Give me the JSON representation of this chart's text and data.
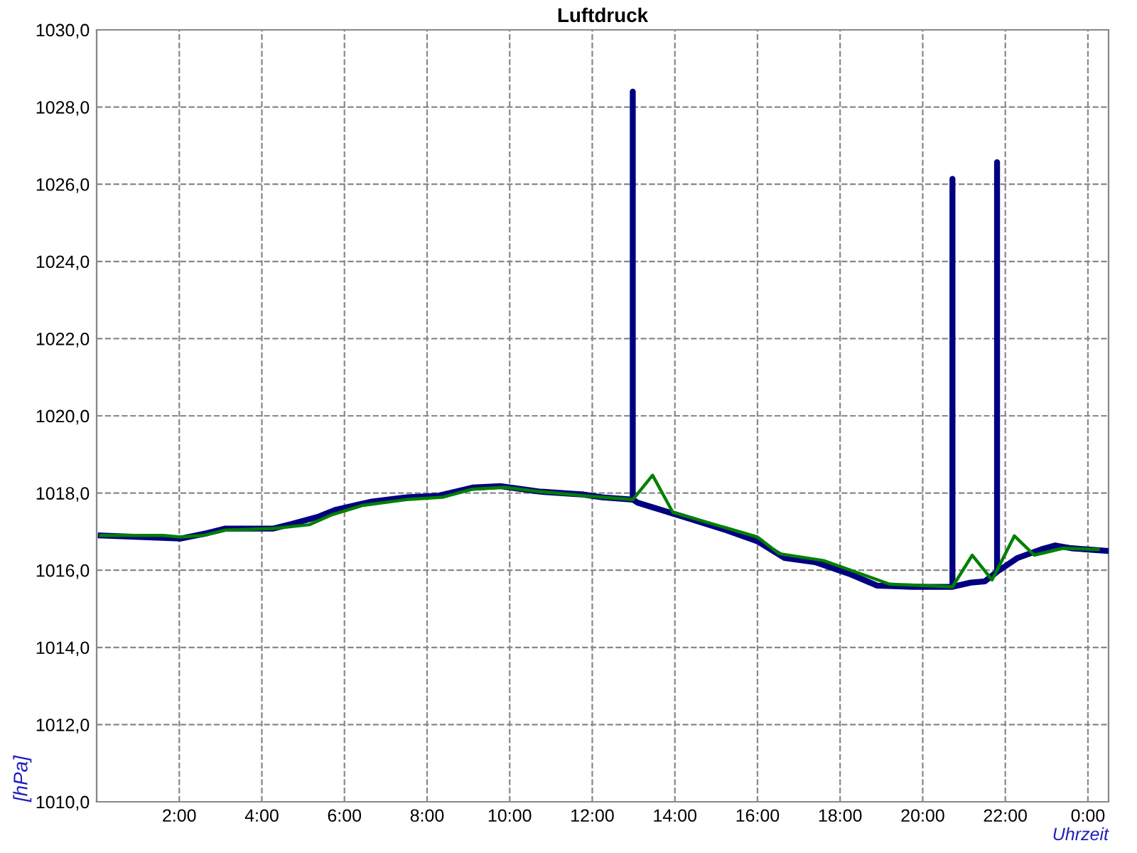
{
  "chart_data": {
    "type": "line",
    "title": "Luftdruck",
    "xlabel": "Uhrzeit",
    "ylabel": "[hPa]",
    "xlim": [
      0,
      24.5
    ],
    "xticks": [
      {
        "value": 0,
        "label": null
      },
      {
        "value": 2,
        "label": "2:00"
      },
      {
        "value": 4,
        "label": "4:00"
      },
      {
        "value": 6,
        "label": "6:00"
      },
      {
        "value": 8,
        "label": "8:00"
      },
      {
        "value": 10,
        "label": "10:00"
      },
      {
        "value": 12,
        "label": "12:00"
      },
      {
        "value": 14,
        "label": "14:00"
      },
      {
        "value": 16,
        "label": "16:00"
      },
      {
        "value": 18,
        "label": "18:00"
      },
      {
        "value": 20,
        "label": "20:00"
      },
      {
        "value": 22,
        "label": "22:00"
      },
      {
        "value": 24,
        "label": "0:00"
      }
    ],
    "ylim": [
      1010,
      1030
    ],
    "yticks": [
      {
        "value": 1010,
        "label": "1010,0"
      },
      {
        "value": 1012,
        "label": "1012,0"
      },
      {
        "value": 1014,
        "label": "1014,0"
      },
      {
        "value": 1016,
        "label": "1016,0"
      },
      {
        "value": 1018,
        "label": "1018,0"
      },
      {
        "value": 1020,
        "label": "1020,0"
      },
      {
        "value": 1022,
        "label": "1022,0"
      },
      {
        "value": 1024,
        "label": "1024,0"
      },
      {
        "value": 1026,
        "label": "1026,0"
      },
      {
        "value": 1028,
        "label": "1028,0"
      },
      {
        "value": 1030,
        "label": "1030,0"
      }
    ],
    "grid": true,
    "marker": "none",
    "line_style": "solid",
    "series": [
      {
        "color": "#000080",
        "x": [
          0.1,
          2.03,
          2.67,
          3.12,
          4.28,
          4.73,
          5.38,
          5.8,
          6.67,
          7.5,
          8.28,
          9.1,
          9.77,
          10.7,
          11.8,
          12.24,
          12.98,
          12.98,
          12.98,
          13.1,
          13.62,
          14.4,
          15.24,
          16.0,
          16.65,
          17.4,
          18.26,
          18.9,
          19.75,
          20.72,
          20.72,
          20.72,
          21.16,
          21.5,
          21.8,
          21.8,
          21.8,
          22.3,
          22.87,
          23.2,
          23.6,
          24.48
        ],
        "values": [
          1016.9,
          1016.82,
          1016.96,
          1017.08,
          1017.08,
          1017.2,
          1017.39,
          1017.57,
          1017.78,
          1017.89,
          1017.93,
          1018.14,
          1018.18,
          1018.04,
          1017.96,
          1017.89,
          1017.83,
          1028.4,
          1017.83,
          1017.75,
          1017.58,
          1017.32,
          1017.04,
          1016.75,
          1016.32,
          1016.21,
          1015.89,
          1015.6,
          1015.57,
          1015.57,
          1026.14,
          1015.57,
          1015.68,
          1015.71,
          1015.96,
          1026.57,
          1015.96,
          1016.32,
          1016.54,
          1016.64,
          1016.57,
          1016.5
        ]
      },
      {
        "color": "#008000",
        "x": [
          0.1,
          1.61,
          2.03,
          2.58,
          3.12,
          4.28,
          5.15,
          5.7,
          6.44,
          7.5,
          8.37,
          9.1,
          9.88,
          10.7,
          11.8,
          12.24,
          12.98,
          13.46,
          13.95,
          16.0,
          16.52,
          17.6,
          19.2,
          20.72,
          21.2,
          21.68,
          22.22,
          22.7,
          23.4,
          24.25
        ],
        "values": [
          1016.9,
          1016.9,
          1016.86,
          1016.9,
          1017.04,
          1017.08,
          1017.18,
          1017.44,
          1017.68,
          1017.83,
          1017.89,
          1018.1,
          1018.15,
          1018.04,
          1017.93,
          1017.89,
          1017.83,
          1018.46,
          1017.5,
          1016.86,
          1016.43,
          1016.25,
          1015.64,
          1015.57,
          1016.39,
          1015.75,
          1016.89,
          1016.39,
          1016.57,
          1016.54
        ]
      }
    ]
  }
}
